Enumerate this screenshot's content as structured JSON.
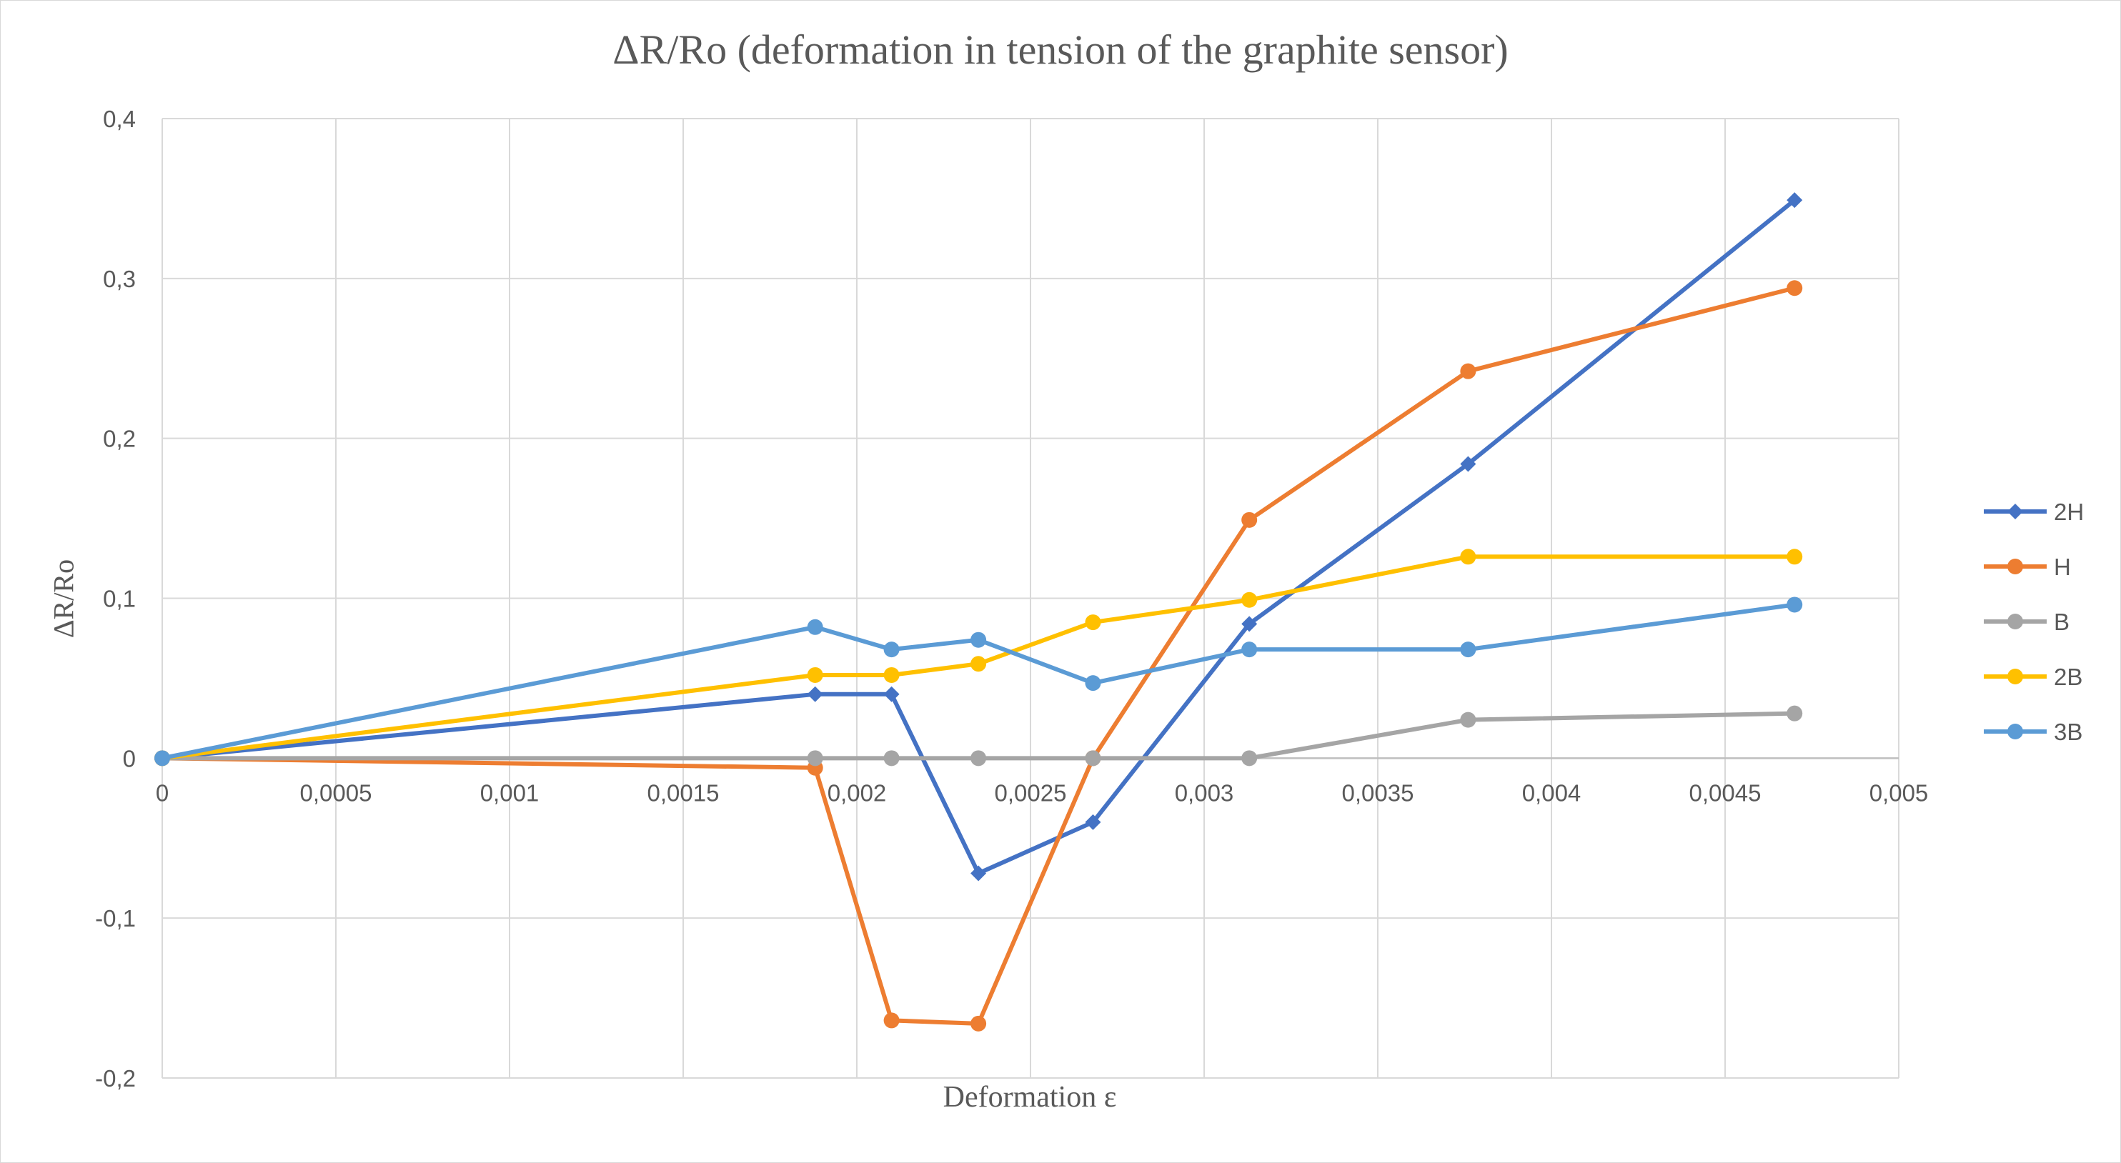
{
  "chart_data": {
    "type": "line",
    "title": "ΔR/Ro (deformation in tension of the graphite sensor)",
    "xlabel": "Deformation ε",
    "ylabel": "ΔR/Ro",
    "xlim": [
      0,
      0.005
    ],
    "ylim": [
      -0.2,
      0.4
    ],
    "x_ticks": [
      "0",
      "0,0005",
      "0,001",
      "0,0015",
      "0,002",
      "0,0025",
      "0,003",
      "0,0035",
      "0,004",
      "0,0045",
      "0,005"
    ],
    "y_ticks": [
      "-0,2",
      "-0,1",
      "0",
      "0,1",
      "0,2",
      "0,3",
      "0,4"
    ],
    "grid": true,
    "legend_position": "right",
    "series": [
      {
        "name": "2H",
        "color": "#4472C4",
        "marker": "diamond",
        "x": [
          0,
          0.00188,
          0.0021,
          0.00235,
          0.00268,
          0.00313,
          0.00376,
          0.0047
        ],
        "y": [
          0,
          0.04,
          0.04,
          -0.072,
          -0.04,
          0.084,
          0.184,
          0.349
        ]
      },
      {
        "name": "H",
        "color": "#ED7D31",
        "marker": "circle",
        "x": [
          0,
          0.00188,
          0.0021,
          0.00235,
          0.00268,
          0.00313,
          0.00376,
          0.0047
        ],
        "y": [
          0,
          -0.006,
          -0.164,
          -0.166,
          0,
          0.149,
          0.242,
          0.294
        ]
      },
      {
        "name": "B",
        "color": "#A5A5A5",
        "marker": "circle",
        "x": [
          0,
          0.00188,
          0.0021,
          0.00235,
          0.00268,
          0.00313,
          0.00376,
          0.0047
        ],
        "y": [
          0,
          0,
          0,
          0,
          0,
          0,
          0.024,
          0.028
        ]
      },
      {
        "name": "2B",
        "color": "#FFC000",
        "marker": "circle",
        "x": [
          0,
          0.00188,
          0.0021,
          0.00235,
          0.00268,
          0.00313,
          0.00376,
          0.0047
        ],
        "y": [
          0,
          0.052,
          0.052,
          0.059,
          0.085,
          0.099,
          0.126,
          0.126
        ]
      },
      {
        "name": "3B",
        "color": "#5B9BD5",
        "marker": "circle",
        "x": [
          0,
          0.00188,
          0.0021,
          0.00235,
          0.00268,
          0.00313,
          0.00376,
          0.0047
        ],
        "y": [
          0,
          0.082,
          0.068,
          0.074,
          0.047,
          0.068,
          0.068,
          0.096
        ]
      }
    ]
  }
}
